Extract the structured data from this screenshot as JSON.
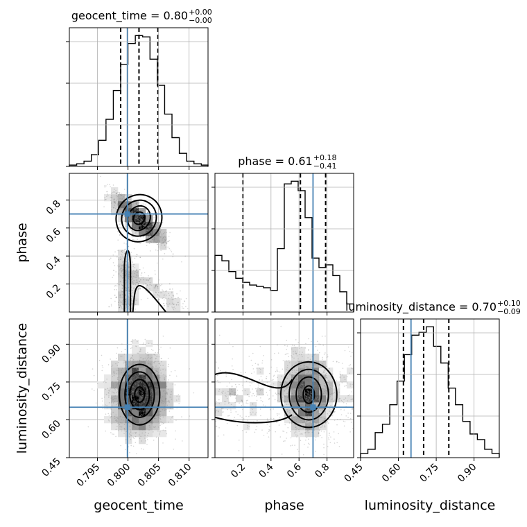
{
  "chart_data": {
    "type": "corner",
    "parameters": [
      "geocent_time",
      "phase",
      "luminosity_distance"
    ],
    "truths": {
      "geocent_time": 0.7999,
      "phase": 0.7,
      "luminosity_distance": 0.65
    },
    "titles": [
      {
        "param": "geocent_time",
        "prefix": "geocent_time = 0.80",
        "upper": "+0.00",
        "lower": "−0.00"
      },
      {
        "param": "phase",
        "prefix": "phase = 0.61",
        "upper": "+0.18",
        "lower": "−0.41"
      },
      {
        "param": "luminosity_distance",
        "prefix": "luminosity_distance = 0.70",
        "upper": "+0.10",
        "lower": "−0.09"
      }
    ],
    "axes": {
      "geocent_time": {
        "range": [
          0.7904,
          0.8131
        ],
        "ticks": [
          "0.795",
          "0.800",
          "0.805",
          "0.810"
        ],
        "tick_values": [
          0.795,
          0.8,
          0.805,
          0.81
        ]
      },
      "phase": {
        "range": [
          0.0,
          0.99
        ],
        "ticks": [
          "0.2",
          "0.4",
          "0.6",
          "0.8"
        ],
        "tick_values": [
          0.2,
          0.4,
          0.6,
          0.8
        ]
      },
      "luminosity_distance": {
        "range": [
          0.45,
          1.0
        ],
        "ticks": [
          "0.45",
          "0.60",
          "0.75",
          "0.90"
        ],
        "tick_values": [
          0.45,
          0.6,
          0.75,
          0.9
        ]
      }
    },
    "xlabels": [
      "geocent_time",
      "phase",
      "luminosity_distance"
    ],
    "ylabels": [
      "phase",
      "luminosity_distance"
    ],
    "marginals": {
      "geocent_time": {
        "quantiles": [
          0.7988,
          0.8018,
          0.8049
        ],
        "bin_edges": [
          0.7904,
          0.7916,
          0.7928,
          0.794,
          0.7952,
          0.7964,
          0.7976,
          0.7988,
          0.8,
          0.8012,
          0.8024,
          0.8036,
          0.8048,
          0.806,
          0.8072,
          0.8084,
          0.8096,
          0.8108,
          0.812,
          0.8131
        ],
        "counts": [
          1,
          2,
          4,
          9,
          20,
          36,
          58,
          78,
          94,
          100,
          99,
          82,
          62,
          40,
          22,
          10,
          4,
          2,
          1
        ]
      },
      "phase": {
        "quantiles": [
          0.2,
          0.61,
          0.79
        ],
        "bin_edges": [
          0.0,
          0.0495,
          0.099,
          0.1485,
          0.198,
          0.2475,
          0.297,
          0.3465,
          0.396,
          0.4455,
          0.495,
          0.5445,
          0.594,
          0.6435,
          0.693,
          0.7425,
          0.792,
          0.8415,
          0.891,
          0.9405,
          0.99
        ],
        "counts": [
          42,
          38,
          30,
          25,
          22,
          20,
          19,
          18,
          16,
          47,
          95,
          97,
          90,
          70,
          40,
          33,
          35,
          27,
          15,
          6
        ]
      },
      "luminosity_distance": {
        "quantiles": [
          0.62,
          0.7,
          0.8
        ],
        "bin_edges": [
          0.45,
          0.4789,
          0.5079,
          0.5368,
          0.5658,
          0.5947,
          0.6237,
          0.6526,
          0.6816,
          0.7105,
          0.7395,
          0.7684,
          0.7974,
          0.8263,
          0.8553,
          0.8842,
          0.9132,
          0.9421,
          0.9711,
          1.0
        ],
        "counts": [
          3,
          6,
          18,
          24,
          38,
          55,
          74,
          88,
          90,
          94,
          80,
          68,
          50,
          38,
          26,
          17,
          13,
          6,
          3
        ]
      }
    }
  }
}
